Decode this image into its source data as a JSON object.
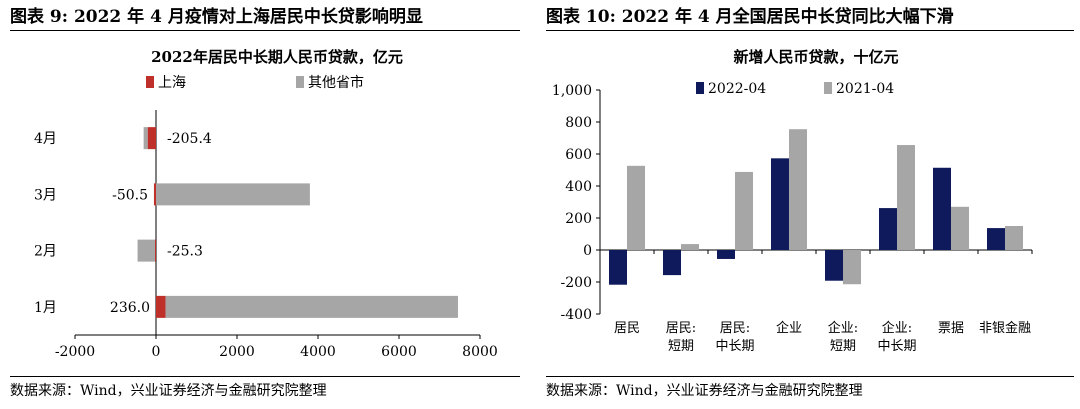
{
  "left": {
    "figure_title": "图表 9: 2022 年 4 月疫情对上海居民中长贷影响明显",
    "source": "数据来源：Wind，兴业证券经济与金融研究院整理",
    "chart_data": {
      "type": "bar",
      "orientation": "horizontal",
      "stacked": true,
      "title": "2022年居民中长期人民币贷款，亿元",
      "categories": [
        "4月",
        "3月",
        "2月",
        "1月"
      ],
      "series": [
        {
          "name": "上海",
          "color": "#c0302a",
          "values": [
            -205.4,
            -50.5,
            -25.3,
            236.0
          ]
        },
        {
          "name": "其他省市",
          "color": "#a6a6a6",
          "values": [
            -100,
            3800,
            -430,
            7220
          ]
        }
      ],
      "data_labels": [
        "-205.4",
        "-50.5",
        "-25.3",
        "236.0"
      ],
      "xlim": [
        -2000,
        8000
      ],
      "xticks": [
        -2000,
        0,
        2000,
        4000,
        6000,
        8000
      ],
      "xtick_labels": [
        "-2000",
        "0",
        "2000",
        "4000",
        "6000",
        "8000"
      ],
      "legend": "top"
    }
  },
  "right": {
    "figure_title": "图表 10:  2022 年 4 月全国居民中长贷同比大幅下滑",
    "source": "数据来源：Wind，兴业证券经济与金融研究院整理",
    "chart_data": {
      "type": "bar",
      "title": "新增人民币贷款，十亿元",
      "categories": [
        [
          "居民"
        ],
        [
          "居民:",
          "短期"
        ],
        [
          "居民:",
          "中长期"
        ],
        [
          "企业"
        ],
        [
          "企业:",
          "短期"
        ],
        [
          "企业:",
          "中长期"
        ],
        [
          "票据"
        ],
        [
          "非银金融"
        ]
      ],
      "series": [
        {
          "name": "2022-04",
          "color": "#0f1a5c",
          "values": [
            -217,
            -157,
            -56,
            573,
            -192,
            262,
            514,
            137
          ]
        },
        {
          "name": "2021-04",
          "color": "#a6a6a6",
          "values": [
            526,
            37,
            488,
            755,
            -214,
            656,
            270,
            150
          ]
        }
      ],
      "ylim": [
        -400,
        1000
      ],
      "yticks": [
        -400,
        -200,
        0,
        200,
        400,
        600,
        800,
        1000
      ],
      "ytick_labels": [
        "-400",
        "-200",
        "0",
        "200",
        "400",
        "600",
        "800",
        "1,000"
      ],
      "legend": "top"
    }
  }
}
